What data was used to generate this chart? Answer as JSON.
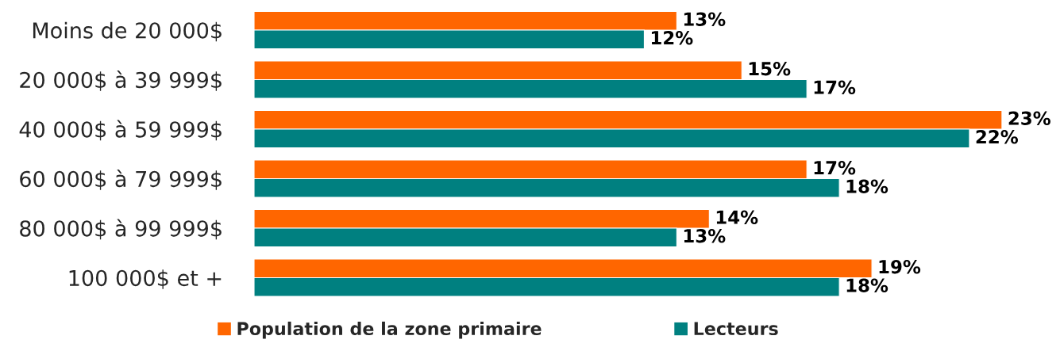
{
  "chart_data": {
    "type": "bar",
    "orientation": "horizontal",
    "legend": "bottom",
    "categories": [
      "Moins de 20 000$",
      "20 000$ à 39 999$",
      "40 000$ à 59 999$",
      "60 000$ à 79 999$",
      "80 000$ à 99 999$",
      "100 000$ et +"
    ],
    "series": [
      {
        "name": "Population de la zone primaire",
        "color": "#ff6600",
        "values": [
          13,
          15,
          23,
          17,
          14,
          19
        ],
        "value_labels": [
          "13%",
          "15%",
          "23%",
          "17%",
          "14%",
          "19%"
        ]
      },
      {
        "name": "Lecteurs",
        "color": "#008080",
        "values": [
          12,
          17,
          22,
          18,
          13,
          18
        ],
        "value_labels": [
          "12%",
          "17%",
          "22%",
          "18%",
          "13%",
          "18%"
        ]
      }
    ]
  }
}
